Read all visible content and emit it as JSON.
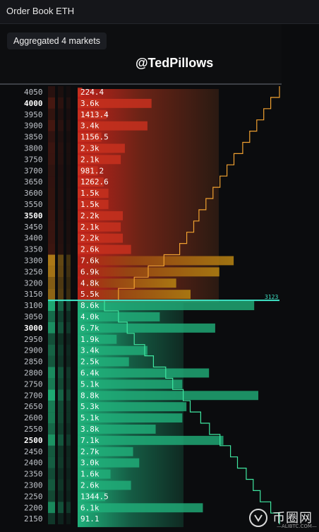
{
  "window": {
    "title": "Order Book ETH"
  },
  "controls": {
    "aggregation_label": "Aggregated 4 markets"
  },
  "watermark": "@TedPillows",
  "brand": {
    "name": "币圈网",
    "subtitle": "—ALIBTC.COM—"
  },
  "colors": {
    "ask": "#b5201a",
    "ask_warm": "#c98a14",
    "bid": "#20b37a",
    "mid": "#3fe6c8",
    "ask_depth_line": "#f0a030",
    "bid_depth_line": "#3fe6a0"
  },
  "chart_data": {
    "type": "bar",
    "title": "Order Book ETH",
    "mid_price": 3100,
    "mid_label": "3123",
    "major_levels": [
      4000,
      3500,
      3000,
      2500
    ],
    "levels": [
      {
        "price": 4050,
        "side": "ask",
        "size_label": "224.4",
        "size": 224.4
      },
      {
        "price": 4000,
        "side": "ask",
        "size_label": "3.6k",
        "size": 3600
      },
      {
        "price": 3950,
        "side": "ask",
        "size_label": "1413.4",
        "size": 1413.4
      },
      {
        "price": 3900,
        "side": "ask",
        "size_label": "3.4k",
        "size": 3400
      },
      {
        "price": 3850,
        "side": "ask",
        "size_label": "1156.5",
        "size": 1156.5
      },
      {
        "price": 3800,
        "side": "ask",
        "size_label": "2.3k",
        "size": 2300
      },
      {
        "price": 3750,
        "side": "ask",
        "size_label": "2.1k",
        "size": 2100
      },
      {
        "price": 3700,
        "side": "ask",
        "size_label": "981.2",
        "size": 981.2
      },
      {
        "price": 3650,
        "side": "ask",
        "size_label": "1262.6",
        "size": 1262.6
      },
      {
        "price": 3600,
        "side": "ask",
        "size_label": "1.5k",
        "size": 1500
      },
      {
        "price": 3550,
        "side": "ask",
        "size_label": "1.5k",
        "size": 1500
      },
      {
        "price": 3500,
        "side": "ask",
        "size_label": "2.2k",
        "size": 2200
      },
      {
        "price": 3450,
        "side": "ask",
        "size_label": "2.1k",
        "size": 2100
      },
      {
        "price": 3400,
        "side": "ask",
        "size_label": "2.2k",
        "size": 2200
      },
      {
        "price": 3350,
        "side": "ask",
        "size_label": "2.6k",
        "size": 2600
      },
      {
        "price": 3300,
        "side": "ask",
        "size_label": "7.6k",
        "size": 7600
      },
      {
        "price": 3250,
        "side": "ask",
        "size_label": "6.9k",
        "size": 6900
      },
      {
        "price": 3200,
        "side": "ask",
        "size_label": "4.8k",
        "size": 4800
      },
      {
        "price": 3150,
        "side": "ask",
        "size_label": "5.5k",
        "size": 5500
      },
      {
        "price": 3100,
        "side": "bid",
        "size_label": "8.6k",
        "size": 8600
      },
      {
        "price": 3050,
        "side": "bid",
        "size_label": "4.0k",
        "size": 4000
      },
      {
        "price": 3000,
        "side": "bid",
        "size_label": "6.7k",
        "size": 6700
      },
      {
        "price": 2950,
        "side": "bid",
        "size_label": "1.9k",
        "size": 1900
      },
      {
        "price": 2900,
        "side": "bid",
        "size_label": "3.4k",
        "size": 3400
      },
      {
        "price": 2850,
        "side": "bid",
        "size_label": "2.5k",
        "size": 2500
      },
      {
        "price": 2800,
        "side": "bid",
        "size_label": "6.4k",
        "size": 6400
      },
      {
        "price": 2750,
        "side": "bid",
        "size_label": "5.1k",
        "size": 5100
      },
      {
        "price": 2700,
        "side": "bid",
        "size_label": "8.8k",
        "size": 8800
      },
      {
        "price": 2650,
        "side": "bid",
        "size_label": "5.3k",
        "size": 5300
      },
      {
        "price": 2600,
        "side": "bid",
        "size_label": "5.1k",
        "size": 5100
      },
      {
        "price": 2550,
        "side": "bid",
        "size_label": "3.8k",
        "size": 3800
      },
      {
        "price": 2500,
        "side": "bid",
        "size_label": "7.1k",
        "size": 7100
      },
      {
        "price": 2450,
        "side": "bid",
        "size_label": "2.7k",
        "size": 2700
      },
      {
        "price": 2400,
        "side": "bid",
        "size_label": "3.0k",
        "size": 3000
      },
      {
        "price": 2350,
        "side": "bid",
        "size_label": "1.6k",
        "size": 1600
      },
      {
        "price": 2300,
        "side": "bid",
        "size_label": "2.6k",
        "size": 2600
      },
      {
        "price": 2250,
        "side": "bid",
        "size_label": "1344.5",
        "size": 1344.5
      },
      {
        "price": 2200,
        "side": "bid",
        "size_label": "6.1k",
        "size": 6100
      },
      {
        "price": 2150,
        "side": "bid",
        "size_label": "91.1",
        "size": 91.1
      }
    ],
    "ask_cumulative_depth": [
      {
        "price": 4050,
        "value": 1.0
      },
      {
        "price": 4000,
        "value": 0.95
      },
      {
        "price": 3950,
        "value": 0.91
      },
      {
        "price": 3900,
        "value": 0.87
      },
      {
        "price": 3850,
        "value": 0.83
      },
      {
        "price": 3800,
        "value": 0.79
      },
      {
        "price": 3750,
        "value": 0.74
      },
      {
        "price": 3700,
        "value": 0.7
      },
      {
        "price": 3650,
        "value": 0.66
      },
      {
        "price": 3600,
        "value": 0.62
      },
      {
        "price": 3550,
        "value": 0.58
      },
      {
        "price": 3500,
        "value": 0.54
      },
      {
        "price": 3450,
        "value": 0.51
      },
      {
        "price": 3400,
        "value": 0.47
      },
      {
        "price": 3350,
        "value": 0.43
      },
      {
        "price": 3300,
        "value": 0.34
      },
      {
        "price": 3250,
        "value": 0.25
      },
      {
        "price": 3200,
        "value": 0.17
      },
      {
        "price": 3150,
        "value": 0.08
      }
    ],
    "bid_cumulative_depth": [
      {
        "price": 3100,
        "value": 0.0
      },
      {
        "price": 3050,
        "value": 0.08
      },
      {
        "price": 3000,
        "value": 0.13
      },
      {
        "price": 2950,
        "value": 0.17
      },
      {
        "price": 2900,
        "value": 0.23
      },
      {
        "price": 2850,
        "value": 0.28
      },
      {
        "price": 2800,
        "value": 0.35
      },
      {
        "price": 2750,
        "value": 0.39
      },
      {
        "price": 2700,
        "value": 0.45
      },
      {
        "price": 2650,
        "value": 0.49
      },
      {
        "price": 2600,
        "value": 0.55
      },
      {
        "price": 2550,
        "value": 0.6
      },
      {
        "price": 2500,
        "value": 0.66
      },
      {
        "price": 2450,
        "value": 0.72
      },
      {
        "price": 2400,
        "value": 0.76
      },
      {
        "price": 2350,
        "value": 0.81
      },
      {
        "price": 2300,
        "value": 0.85
      },
      {
        "price": 2250,
        "value": 0.89
      },
      {
        "price": 2200,
        "value": 0.95
      },
      {
        "price": 2150,
        "value": 1.0
      }
    ]
  }
}
